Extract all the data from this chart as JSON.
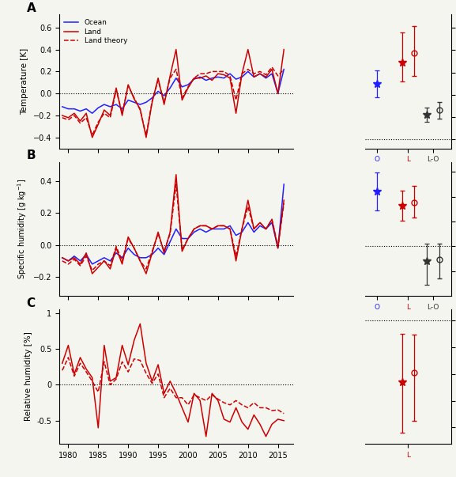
{
  "panel_labels": [
    "A",
    "B",
    "C"
  ],
  "years": [
    1979,
    1980,
    1981,
    1982,
    1983,
    1984,
    1985,
    1986,
    1987,
    1988,
    1989,
    1990,
    1991,
    1992,
    1993,
    1994,
    1995,
    1996,
    1997,
    1998,
    1999,
    2000,
    2001,
    2002,
    2003,
    2004,
    2005,
    2006,
    2007,
    2008,
    2009,
    2010,
    2011,
    2012,
    2013,
    2014,
    2015,
    2016
  ],
  "temp_ocean": [
    -0.12,
    -0.14,
    -0.14,
    -0.16,
    -0.14,
    -0.18,
    -0.13,
    -0.1,
    -0.12,
    -0.1,
    -0.14,
    -0.06,
    -0.08,
    -0.1,
    -0.08,
    -0.04,
    0.02,
    -0.02,
    0.05,
    0.14,
    0.06,
    0.08,
    0.13,
    0.15,
    0.12,
    0.14,
    0.15,
    0.14,
    0.18,
    0.13,
    0.15,
    0.2,
    0.15,
    0.18,
    0.14,
    0.18,
    0.0,
    0.22
  ],
  "temp_land": [
    -0.2,
    -0.22,
    -0.18,
    -0.25,
    -0.18,
    -0.4,
    -0.28,
    -0.15,
    -0.2,
    0.05,
    -0.2,
    0.08,
    -0.05,
    -0.14,
    -0.4,
    -0.08,
    0.14,
    -0.1,
    0.16,
    0.4,
    -0.06,
    0.05,
    0.14,
    0.14,
    0.16,
    0.12,
    0.18,
    0.17,
    0.14,
    -0.18,
    0.18,
    0.4,
    0.15,
    0.18,
    0.15,
    0.22,
    0.0,
    0.4
  ],
  "temp_theory": [
    -0.22,
    -0.24,
    -0.2,
    -0.27,
    -0.22,
    -0.38,
    -0.26,
    -0.18,
    -0.22,
    0.03,
    -0.18,
    0.07,
    -0.04,
    -0.15,
    -0.38,
    -0.07,
    0.12,
    -0.08,
    0.14,
    0.22,
    -0.04,
    0.06,
    0.14,
    0.18,
    0.18,
    0.2,
    0.2,
    0.2,
    0.16,
    -0.06,
    0.18,
    0.22,
    0.18,
    0.2,
    0.17,
    0.24,
    0.16,
    0.22
  ],
  "shum_ocean": [
    -0.08,
    -0.1,
    -0.07,
    -0.1,
    -0.06,
    -0.12,
    -0.1,
    -0.08,
    -0.1,
    -0.05,
    -0.08,
    -0.02,
    -0.06,
    -0.08,
    -0.08,
    -0.06,
    -0.02,
    -0.06,
    0.02,
    0.1,
    0.04,
    0.04,
    0.08,
    0.1,
    0.08,
    0.1,
    0.1,
    0.1,
    0.12,
    0.06,
    0.08,
    0.14,
    0.08,
    0.12,
    0.1,
    0.14,
    -0.02,
    0.38
  ],
  "shum_land": [
    -0.08,
    -0.1,
    -0.08,
    -0.12,
    -0.05,
    -0.18,
    -0.14,
    -0.1,
    -0.15,
    -0.02,
    -0.12,
    0.05,
    -0.02,
    -0.1,
    -0.18,
    -0.05,
    0.08,
    -0.05,
    0.08,
    0.44,
    -0.04,
    0.04,
    0.1,
    0.12,
    0.12,
    0.1,
    0.12,
    0.12,
    0.1,
    -0.1,
    0.1,
    0.28,
    0.1,
    0.14,
    0.1,
    0.16,
    -0.02,
    0.28
  ],
  "shum_theory": [
    -0.1,
    -0.12,
    -0.09,
    -0.13,
    -0.07,
    -0.16,
    -0.12,
    -0.1,
    -0.13,
    -0.01,
    -0.1,
    0.04,
    -0.02,
    -0.1,
    -0.15,
    -0.04,
    0.07,
    -0.04,
    0.07,
    0.38,
    -0.03,
    0.04,
    0.1,
    0.12,
    0.12,
    0.1,
    0.12,
    0.12,
    0.1,
    -0.07,
    0.1,
    0.24,
    0.1,
    0.14,
    0.1,
    0.16,
    -0.01,
    0.26
  ],
  "rh_land": [
    0.3,
    0.55,
    0.15,
    0.38,
    0.22,
    0.1,
    -0.6,
    0.55,
    0.05,
    0.1,
    0.55,
    0.28,
    0.62,
    0.85,
    0.3,
    0.05,
    0.28,
    -0.12,
    0.05,
    -0.12,
    -0.32,
    -0.52,
    -0.12,
    -0.22,
    -0.72,
    -0.12,
    -0.22,
    -0.48,
    -0.52,
    -0.32,
    -0.52,
    -0.62,
    -0.42,
    -0.55,
    -0.72,
    -0.55,
    -0.48,
    -0.5
  ],
  "rh_theory": [
    0.2,
    0.38,
    0.12,
    0.3,
    0.18,
    0.05,
    -0.1,
    0.32,
    0.0,
    0.08,
    0.32,
    0.18,
    0.36,
    0.34,
    0.16,
    0.02,
    0.15,
    -0.18,
    -0.05,
    -0.18,
    -0.18,
    -0.28,
    -0.14,
    -0.18,
    -0.22,
    -0.14,
    -0.2,
    -0.25,
    -0.28,
    -0.22,
    -0.28,
    -0.32,
    -0.25,
    -0.32,
    -0.32,
    -0.36,
    -0.35,
    -0.4
  ],
  "trends_A": {
    "O": {
      "val": 0.125,
      "lo": 0.095,
      "hi": 0.155
    },
    "L": {
      "val": 0.172,
      "lo": 0.13,
      "hi": 0.24
    },
    "L_circle": {
      "val": 0.193,
      "lo": 0.143,
      "hi": 0.253
    },
    "LO": {
      "val": 0.055,
      "lo": 0.04,
      "hi": 0.072
    },
    "LO_circle": {
      "val": 0.066,
      "lo": 0.046,
      "hi": 0.083
    }
  },
  "trends_B": {
    "O": {
      "val": 0.11,
      "lo": 0.072,
      "hi": 0.148
    },
    "L": {
      "val": 0.082,
      "lo": 0.052,
      "hi": 0.112
    },
    "L_circle": {
      "val": 0.088,
      "lo": 0.058,
      "hi": 0.122
    },
    "LO": {
      "val": -0.03,
      "lo": -0.078,
      "hi": 0.005
    },
    "LO_circle": {
      "val": -0.027,
      "lo": -0.065,
      "hi": 0.006
    }
  },
  "trends_C": {
    "L": {
      "val": -0.23,
      "lo": -0.42,
      "hi": -0.05
    },
    "L_circle": {
      "val": -0.195,
      "lo": -0.375,
      "hi": -0.055
    }
  },
  "color_ocean": "#1f1fff",
  "color_land": "#cc0000",
  "color_lo": "#333333",
  "xlim": [
    1978.5,
    2017.5
  ],
  "xticks": [
    1980,
    1985,
    1990,
    1995,
    2000,
    2005,
    2010,
    2015
  ]
}
